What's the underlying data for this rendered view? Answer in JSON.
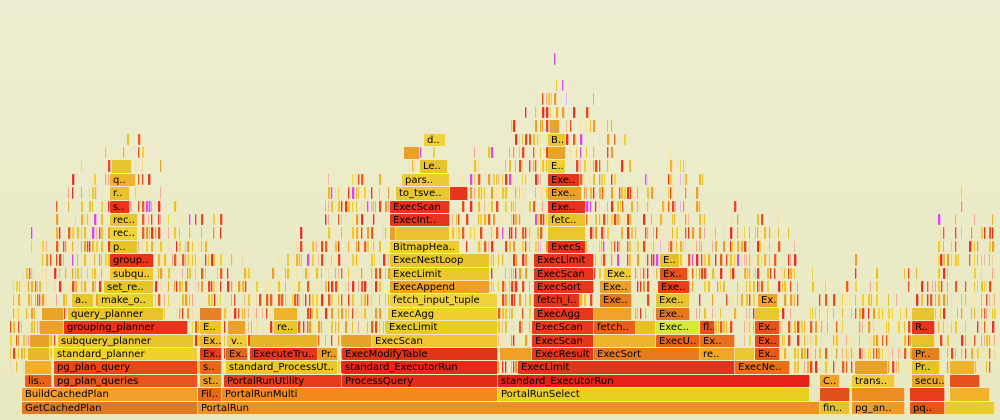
{
  "flamegraph": {
    "frames": [
      {
        "name": "GetCachedPlan",
        "start": 0.022,
        "end": 0.198,
        "depth": 0,
        "color": "#e07a22"
      },
      {
        "name": "PortalRun",
        "start": 0.198,
        "end": 0.82,
        "depth": 0,
        "color": "#f0921e"
      },
      {
        "name": "fin..",
        "start": 0.82,
        "end": 0.85,
        "depth": 0,
        "color": "#e8c41c"
      },
      {
        "name": "pg_an..",
        "start": 0.852,
        "end": 0.905,
        "depth": 0,
        "color": "#f39a24"
      },
      {
        "name": "pq..",
        "start": 0.91,
        "end": 0.945,
        "depth": 0,
        "color": "#e05a14"
      },
      {
        "name": "",
        "start": 0.945,
        "end": 0.995,
        "depth": 0,
        "color": "#e8cc2a"
      },
      {
        "name": "BuildCachedPlan",
        "start": 0.022,
        "end": 0.198,
        "depth": 1,
        "color": "#f0a02a"
      },
      {
        "name": "Fil..",
        "start": 0.198,
        "end": 0.222,
        "depth": 1,
        "color": "#e86a18"
      },
      {
        "name": "PortalRunMulti",
        "start": 0.222,
        "end": 0.498,
        "depth": 1,
        "color": "#f08a1c"
      },
      {
        "name": "PortalRunSelect",
        "start": 0.498,
        "end": 0.81,
        "depth": 1,
        "color": "#e8d020"
      },
      {
        "name": "",
        "start": 0.82,
        "end": 0.85,
        "depth": 1,
        "color": "#e0501a"
      },
      {
        "name": "",
        "start": 0.852,
        "end": 0.905,
        "depth": 1,
        "color": "#ee8e22"
      },
      {
        "name": "",
        "start": 0.91,
        "end": 0.945,
        "depth": 1,
        "color": "#e83c1a"
      },
      {
        "name": "",
        "start": 0.95,
        "end": 0.99,
        "depth": 1,
        "color": "#f0b22a"
      },
      {
        "name": "lis..",
        "start": 0.025,
        "end": 0.052,
        "depth": 2,
        "color": "#e8621a"
      },
      {
        "name": "pg_plan_queries",
        "start": 0.054,
        "end": 0.198,
        "depth": 2,
        "color": "#e8521c"
      },
      {
        "name": "st..",
        "start": 0.2,
        "end": 0.222,
        "depth": 2,
        "color": "#e6a02a"
      },
      {
        "name": "PortalRunUtility",
        "start": 0.224,
        "end": 0.342,
        "depth": 2,
        "color": "#e83a1c"
      },
      {
        "name": "ProcessQuery",
        "start": 0.342,
        "end": 0.498,
        "depth": 2,
        "color": "#e62c18"
      },
      {
        "name": "standard_ExecutorRun",
        "start": 0.498,
        "end": 0.81,
        "depth": 2,
        "color": "#e42218"
      },
      {
        "name": "C..",
        "start": 0.82,
        "end": 0.84,
        "depth": 2,
        "color": "#f0a226"
      },
      {
        "name": "trans..",
        "start": 0.852,
        "end": 0.895,
        "depth": 2,
        "color": "#f0ca3a"
      },
      {
        "name": "secu..",
        "start": 0.912,
        "end": 0.945,
        "depth": 2,
        "color": "#e8a624"
      },
      {
        "name": "",
        "start": 0.95,
        "end": 0.98,
        "depth": 2,
        "color": "#e6501c"
      },
      {
        "name": "",
        "start": 0.025,
        "end": 0.052,
        "depth": 3,
        "color": "#f0b02c"
      },
      {
        "name": "pg_plan_query",
        "start": 0.054,
        "end": 0.198,
        "depth": 3,
        "color": "#e84818"
      },
      {
        "name": "s..",
        "start": 0.2,
        "end": 0.222,
        "depth": 3,
        "color": "#e86820"
      },
      {
        "name": "standard_ProcessUt..",
        "start": 0.226,
        "end": 0.338,
        "depth": 3,
        "color": "#e8c82a"
      },
      {
        "name": "standard_ExecutorRun",
        "start": 0.342,
        "end": 0.498,
        "depth": 3,
        "color": "#e8281a"
      },
      {
        "name": "ExecLimit",
        "start": 0.518,
        "end": 0.735,
        "depth": 3,
        "color": "#e0341c"
      },
      {
        "name": "ExecNe..",
        "start": 0.735,
        "end": 0.79,
        "depth": 3,
        "color": "#e87018"
      },
      {
        "name": "",
        "start": 0.855,
        "end": 0.888,
        "depth": 3,
        "color": "#e8a22a"
      },
      {
        "name": "Pr..",
        "start": 0.912,
        "end": 0.94,
        "depth": 3,
        "color": "#e8c02a"
      },
      {
        "name": "",
        "start": 0.95,
        "end": 0.975,
        "depth": 3,
        "color": "#f0b42c"
      },
      {
        "name": "",
        "start": 0.028,
        "end": 0.05,
        "depth": 4,
        "color": "#e8b82c"
      },
      {
        "name": "standard_planner",
        "start": 0.054,
        "end": 0.198,
        "depth": 4,
        "color": "#f0d02a"
      },
      {
        "name": "Ex..",
        "start": 0.2,
        "end": 0.222,
        "depth": 4,
        "color": "#e83c1a"
      },
      {
        "name": "Ex..",
        "start": 0.226,
        "end": 0.248,
        "depth": 4,
        "color": "#e8681c"
      },
      {
        "name": "ExecuteTru..",
        "start": 0.25,
        "end": 0.318,
        "depth": 4,
        "color": "#e8341c"
      },
      {
        "name": "Pr..",
        "start": 0.318,
        "end": 0.338,
        "depth": 4,
        "color": "#e8a024"
      },
      {
        "name": "ExecModifyTable",
        "start": 0.342,
        "end": 0.498,
        "depth": 4,
        "color": "#e03418"
      },
      {
        "name": "",
        "start": 0.5,
        "end": 0.532,
        "depth": 4,
        "color": "#f0a028"
      },
      {
        "name": "ExecResult",
        "start": 0.532,
        "end": 0.594,
        "depth": 4,
        "color": "#e6361a"
      },
      {
        "name": "ExecSort",
        "start": 0.594,
        "end": 0.7,
        "depth": 4,
        "color": "#e87a1c"
      },
      {
        "name": "re..",
        "start": 0.7,
        "end": 0.735,
        "depth": 4,
        "color": "#f0a626"
      },
      {
        "name": "",
        "start": 0.735,
        "end": 0.755,
        "depth": 4,
        "color": "#e8c82a"
      },
      {
        "name": "Ex..",
        "start": 0.755,
        "end": 0.78,
        "depth": 4,
        "color": "#e85a1a"
      },
      {
        "name": "Pr..",
        "start": 0.912,
        "end": 0.94,
        "depth": 4,
        "color": "#e8801e"
      },
      {
        "name": "",
        "start": 0.03,
        "end": 0.05,
        "depth": 5,
        "color": "#e8a028"
      },
      {
        "name": "subquery_planner",
        "start": 0.058,
        "end": 0.194,
        "depth": 5,
        "color": "#e8c62a"
      },
      {
        "name": "Ex..",
        "start": 0.2,
        "end": 0.222,
        "depth": 5,
        "color": "#f0b82e"
      },
      {
        "name": "v..",
        "start": 0.228,
        "end": 0.248,
        "depth": 5,
        "color": "#f0cc3a"
      },
      {
        "name": "",
        "start": 0.25,
        "end": 0.318,
        "depth": 5,
        "color": "#e8b42a"
      },
      {
        "name": "",
        "start": 0.342,
        "end": 0.372,
        "depth": 5,
        "color": "#e8a22a"
      },
      {
        "name": "ExecScan",
        "start": 0.372,
        "end": 0.498,
        "depth": 5,
        "color": "#f0c62e"
      },
      {
        "name": "ExecScan",
        "start": 0.532,
        "end": 0.594,
        "depth": 5,
        "color": "#e8341c"
      },
      {
        "name": "",
        "start": 0.594,
        "end": 0.656,
        "depth": 5,
        "color": "#f0b42c"
      },
      {
        "name": "ExecU..",
        "start": 0.656,
        "end": 0.7,
        "depth": 5,
        "color": "#e8601a"
      },
      {
        "name": "Ex..",
        "start": 0.7,
        "end": 0.735,
        "depth": 5,
        "color": "#e8701c"
      },
      {
        "name": "Ex..",
        "start": 0.755,
        "end": 0.78,
        "depth": 5,
        "color": "#e84a1a"
      },
      {
        "name": "",
        "start": 0.912,
        "end": 0.935,
        "depth": 5,
        "color": "#e8c02a"
      },
      {
        "name": "",
        "start": 0.04,
        "end": 0.064,
        "depth": 6,
        "color": "#f0a02a"
      },
      {
        "name": "grouping_planner",
        "start": 0.064,
        "end": 0.188,
        "depth": 6,
        "color": "#e8341a"
      },
      {
        "name": "E..",
        "start": 0.2,
        "end": 0.222,
        "depth": 6,
        "color": "#f0c22e"
      },
      {
        "name": "",
        "start": 0.228,
        "end": 0.246,
        "depth": 6,
        "color": "#e8a22a"
      },
      {
        "name": "re..",
        "start": 0.274,
        "end": 0.298,
        "depth": 6,
        "color": "#e8c62a"
      },
      {
        "name": "ExecLimit",
        "start": 0.386,
        "end": 0.498,
        "depth": 6,
        "color": "#e8ca2a"
      },
      {
        "name": "ExecScan",
        "start": 0.532,
        "end": 0.594,
        "depth": 6,
        "color": "#e83a1c"
      },
      {
        "name": "fetch..",
        "start": 0.594,
        "end": 0.636,
        "depth": 6,
        "color": "#e8601a"
      },
      {
        "name": "",
        "start": 0.636,
        "end": 0.656,
        "depth": 6,
        "color": "#e8c02a"
      },
      {
        "name": "Exec..",
        "start": 0.656,
        "end": 0.7,
        "depth": 6,
        "color": "#d8e83a"
      },
      {
        "name": "fl..",
        "start": 0.7,
        "end": 0.715,
        "depth": 6,
        "color": "#e8501a"
      },
      {
        "name": "Ex..",
        "start": 0.755,
        "end": 0.78,
        "depth": 6,
        "color": "#e8521c"
      },
      {
        "name": "R..",
        "start": 0.912,
        "end": 0.935,
        "depth": 6,
        "color": "#e8341a"
      },
      {
        "name": "",
        "start": 0.042,
        "end": 0.064,
        "depth": 7,
        "color": "#e8a428"
      },
      {
        "name": "query_planner",
        "start": 0.068,
        "end": 0.164,
        "depth": 7,
        "color": "#e8c42a"
      },
      {
        "name": "",
        "start": 0.2,
        "end": 0.222,
        "depth": 7,
        "color": "#e8822a"
      },
      {
        "name": "",
        "start": 0.274,
        "end": 0.298,
        "depth": 7,
        "color": "#f0b42c"
      },
      {
        "name": "ExecAgg",
        "start": 0.388,
        "end": 0.498,
        "depth": 7,
        "color": "#f0d02e"
      },
      {
        "name": "ExecAgg",
        "start": 0.534,
        "end": 0.594,
        "depth": 7,
        "color": "#e8361a"
      },
      {
        "name": "",
        "start": 0.594,
        "end": 0.632,
        "depth": 7,
        "color": "#f0a22a"
      },
      {
        "name": "Exe..",
        "start": 0.656,
        "end": 0.69,
        "depth": 7,
        "color": "#e8761e"
      },
      {
        "name": "",
        "start": 0.755,
        "end": 0.78,
        "depth": 7,
        "color": "#e8c82a"
      },
      {
        "name": "",
        "start": 0.912,
        "end": 0.935,
        "depth": 7,
        "color": "#e8c42e"
      },
      {
        "name": "a..",
        "start": 0.072,
        "end": 0.094,
        "depth": 8,
        "color": "#e8c82a"
      },
      {
        "name": "make_o..",
        "start": 0.098,
        "end": 0.154,
        "depth": 8,
        "color": "#e8d02e"
      },
      {
        "name": "fetch_input_tuple",
        "start": 0.39,
        "end": 0.498,
        "depth": 8,
        "color": "#f0d23a"
      },
      {
        "name": "fetch_i..",
        "start": 0.534,
        "end": 0.58,
        "depth": 8,
        "color": "#e8341c"
      },
      {
        "name": "Exe..",
        "start": 0.6,
        "end": 0.632,
        "depth": 8,
        "color": "#e87a20"
      },
      {
        "name": "Exe..",
        "start": 0.656,
        "end": 0.69,
        "depth": 8,
        "color": "#e8c42e"
      },
      {
        "name": "Ex..",
        "start": 0.758,
        "end": 0.778,
        "depth": 8,
        "color": "#f0a22a"
      },
      {
        "name": "set_re..",
        "start": 0.104,
        "end": 0.154,
        "depth": 9,
        "color": "#e8c42a"
      },
      {
        "name": "ExecAppend",
        "start": 0.39,
        "end": 0.49,
        "depth": 9,
        "color": "#f0a024"
      },
      {
        "name": "ExecSort",
        "start": 0.534,
        "end": 0.594,
        "depth": 9,
        "color": "#e8381c"
      },
      {
        "name": "Exe..",
        "start": 0.6,
        "end": 0.632,
        "depth": 9,
        "color": "#e8a02a"
      },
      {
        "name": "Exe..",
        "start": 0.658,
        "end": 0.69,
        "depth": 9,
        "color": "#e8401a"
      },
      {
        "name": "subqu..",
        "start": 0.11,
        "end": 0.154,
        "depth": 10,
        "color": "#f0c82e"
      },
      {
        "name": "ExecLimit",
        "start": 0.39,
        "end": 0.49,
        "depth": 10,
        "color": "#e8c82a"
      },
      {
        "name": "ExecScan",
        "start": 0.534,
        "end": 0.594,
        "depth": 10,
        "color": "#e8341c"
      },
      {
        "name": "Exe..",
        "start": 0.604,
        "end": 0.632,
        "depth": 10,
        "color": "#f0cc34"
      },
      {
        "name": "Ex..",
        "start": 0.66,
        "end": 0.688,
        "depth": 10,
        "color": "#e8501c"
      },
      {
        "name": "group..",
        "start": 0.11,
        "end": 0.154,
        "depth": 11,
        "color": "#e8341a"
      },
      {
        "name": "ExecNestLoop",
        "start": 0.39,
        "end": 0.49,
        "depth": 11,
        "color": "#e8c62a"
      },
      {
        "name": "ExecLimit",
        "start": 0.534,
        "end": 0.594,
        "depth": 11,
        "color": "#e8341c"
      },
      {
        "name": "E..",
        "start": 0.66,
        "end": 0.68,
        "depth": 11,
        "color": "#e8c02a"
      },
      {
        "name": "p..",
        "start": 0.11,
        "end": 0.138,
        "depth": 12,
        "color": "#e8c42a"
      },
      {
        "name": "BitmapHea..",
        "start": 0.39,
        "end": 0.46,
        "depth": 12,
        "color": "#f0cc34"
      },
      {
        "name": "ExecS..",
        "start": 0.548,
        "end": 0.586,
        "depth": 12,
        "color": "#e8341c"
      },
      {
        "name": "rec..",
        "start": 0.11,
        "end": 0.138,
        "depth": 13,
        "color": "#f0d23a"
      },
      {
        "name": "",
        "start": 0.39,
        "end": 0.396,
        "depth": 13,
        "color": "#e8a02a"
      },
      {
        "name": "",
        "start": 0.396,
        "end": 0.45,
        "depth": 13,
        "color": "#e8c42a"
      },
      {
        "name": "",
        "start": 0.548,
        "end": 0.586,
        "depth": 13,
        "color": "#e8c82e"
      },
      {
        "name": "rec..",
        "start": 0.11,
        "end": 0.138,
        "depth": 14,
        "color": "#e8c42e"
      },
      {
        "name": "ExecInt..",
        "start": 0.39,
        "end": 0.45,
        "depth": 14,
        "color": "#e8341c"
      },
      {
        "name": "fetc..",
        "start": 0.548,
        "end": 0.586,
        "depth": 14,
        "color": "#e8c42a"
      },
      {
        "name": "s..",
        "start": 0.11,
        "end": 0.13,
        "depth": 15,
        "color": "#e8341a"
      },
      {
        "name": "ExecScan",
        "start": 0.39,
        "end": 0.45,
        "depth": 15,
        "color": "#e8341c"
      },
      {
        "name": "Exe..",
        "start": 0.548,
        "end": 0.586,
        "depth": 15,
        "color": "#e8341c"
      },
      {
        "name": "r..",
        "start": 0.11,
        "end": 0.13,
        "depth": 16,
        "color": "#e8c42a"
      },
      {
        "name": "to_tsve..",
        "start": 0.396,
        "end": 0.45,
        "depth": 16,
        "color": "#e8c82e"
      },
      {
        "name": "",
        "start": 0.45,
        "end": 0.468,
        "depth": 16,
        "color": "#e8341a"
      },
      {
        "name": "Exe..",
        "start": 0.548,
        "end": 0.582,
        "depth": 16,
        "color": "#e8a22a"
      },
      {
        "name": "q..",
        "start": 0.11,
        "end": 0.136,
        "depth": 17,
        "color": "#f0b42e"
      },
      {
        "name": "pars..",
        "start": 0.402,
        "end": 0.45,
        "depth": 17,
        "color": "#f0cc34"
      },
      {
        "name": "Exe..",
        "start": 0.548,
        "end": 0.58,
        "depth": 17,
        "color": "#e8341c"
      },
      {
        "name": "",
        "start": 0.112,
        "end": 0.132,
        "depth": 18,
        "color": "#e8c42e"
      },
      {
        "name": "Le..",
        "start": 0.42,
        "end": 0.448,
        "depth": 18,
        "color": "#e8c42e"
      },
      {
        "name": "E..",
        "start": 0.548,
        "end": 0.566,
        "depth": 18,
        "color": "#f0d034"
      },
      {
        "name": "",
        "start": 0.404,
        "end": 0.42,
        "depth": 19,
        "color": "#e8a22a"
      },
      {
        "name": "",
        "start": 0.548,
        "end": 0.566,
        "depth": 19,
        "color": "#e8a428"
      },
      {
        "name": "d..",
        "start": 0.424,
        "end": 0.446,
        "depth": 20,
        "color": "#f0d23a"
      },
      {
        "name": "B..",
        "start": 0.548,
        "end": 0.566,
        "depth": 20,
        "color": "#e8c82e"
      },
      {
        "name": "",
        "start": 0.55,
        "end": 0.56,
        "depth": 21,
        "color": "#e8a428"
      }
    ]
  }
}
